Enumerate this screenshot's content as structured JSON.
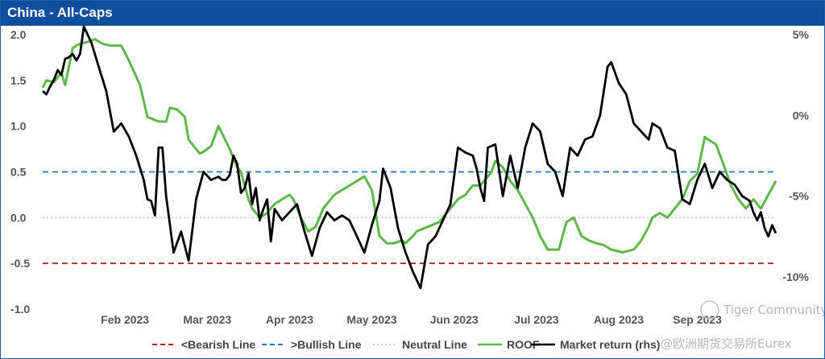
{
  "chart_data": {
    "type": "line",
    "title": "China - All-Caps",
    "x_tick_labels": [
      "Feb 2023",
      "Mar 2023",
      "Apr 2023",
      "May 2023",
      "Jun 2023",
      "Jul 2023",
      "Aug 2023",
      "Sep 2023"
    ],
    "y_left_ticks": [
      "2.0",
      "1.5",
      "1.0",
      "0.5",
      "0.0",
      "-0.5",
      "-1.0"
    ],
    "y_right_ticks": [
      "5%",
      "0%",
      "-5%",
      "-10%"
    ],
    "ylim_left": [
      -1.0,
      2.0
    ],
    "ylim_right_percent": [
      -12.0,
      5.0
    ],
    "reference_lines": [
      {
        "name": "<Bearish Line",
        "value": -0.5,
        "color": "#b22222",
        "style": "dashed"
      },
      {
        "name": ">Bullish Line",
        "value": 0.5,
        "color": "#1f77d4",
        "style": "dashed"
      },
      {
        "name": "Neutral Line",
        "value": 0.0,
        "color": "#bdbdbd",
        "style": "dotted"
      }
    ],
    "series": [
      {
        "name": "ROOF",
        "axis": "left",
        "color": "#5cb848",
        "x": [
          0,
          1,
          3,
          5,
          6,
          7,
          8,
          9,
          10,
          12,
          14,
          16,
          18,
          21,
          23,
          26,
          28,
          31,
          33,
          34,
          36,
          38,
          39,
          41,
          42,
          43,
          45,
          47,
          50,
          52,
          53,
          54,
          55,
          56,
          58,
          60,
          62,
          64,
          66,
          67,
          68,
          69,
          71,
          73,
          75,
          78,
          80,
          82,
          84,
          86,
          88,
          90,
          92,
          94,
          96,
          97,
          99,
          100,
          103,
          106,
          108,
          110,
          111,
          113,
          115,
          117,
          119,
          120,
          121,
          123,
          125,
          127,
          129,
          131,
          133,
          135,
          138,
          140,
          142,
          144,
          146,
          148,
          150,
          152,
          155,
          158,
          160,
          162,
          163,
          165,
          167,
          169,
          171,
          173,
          175,
          177,
          178,
          180,
          182,
          184,
          186,
          188,
          190,
          192,
          194,
          196
        ],
        "values": [
          1.42,
          1.5,
          1.48,
          1.58,
          1.45,
          1.65,
          1.85,
          1.88,
          1.9,
          1.92,
          1.95,
          1.9,
          1.88,
          1.88,
          1.72,
          1.45,
          1.1,
          1.05,
          1.05,
          1.2,
          1.18,
          1.1,
          0.85,
          0.75,
          0.7,
          0.72,
          0.78,
          1.0,
          0.75,
          0.55,
          0.5,
          0.35,
          0.2,
          0.1,
          0.0,
          0.05,
          0.15,
          0.2,
          0.25,
          0.2,
          0.1,
          0.0,
          -0.15,
          -0.1,
          0.1,
          0.25,
          0.3,
          0.35,
          0.4,
          0.45,
          0.3,
          -0.2,
          -0.28,
          -0.28,
          -0.25,
          -0.28,
          -0.2,
          -0.15,
          -0.1,
          -0.05,
          0.05,
          0.15,
          0.2,
          0.25,
          0.35,
          0.35,
          0.45,
          0.5,
          0.62,
          0.55,
          0.4,
          0.3,
          0.15,
          0.0,
          -0.2,
          -0.35,
          -0.35,
          -0.05,
          0.0,
          -0.2,
          -0.25,
          -0.28,
          -0.3,
          -0.35,
          -0.38,
          -0.35,
          -0.25,
          -0.1,
          0.0,
          0.05,
          0.0,
          0.1,
          0.2,
          0.4,
          0.48,
          0.88,
          0.85,
          0.8,
          0.58,
          0.35,
          0.2,
          0.1,
          0.2,
          0.1,
          0.25,
          0.4
        ]
      },
      {
        "name": "Market return (rhs)",
        "axis": "right",
        "unit": "%",
        "color": "#000000",
        "x": [
          0,
          1,
          2,
          3,
          4,
          5,
          6,
          7,
          8,
          9,
          10,
          11,
          13,
          15,
          17,
          19,
          21,
          23,
          25,
          27,
          28,
          29,
          30,
          31,
          32,
          33,
          35,
          37,
          39,
          41,
          43,
          45,
          47,
          48,
          49,
          50,
          51,
          52,
          53,
          54,
          55,
          56,
          57,
          58,
          59,
          60,
          61,
          62,
          64,
          66,
          68,
          70,
          72,
          74,
          76,
          78,
          80,
          82,
          84,
          86,
          88,
          90,
          91,
          93,
          95,
          97,
          99,
          100,
          101,
          103,
          105,
          107,
          109,
          111,
          113,
          115,
          116,
          117,
          118,
          119,
          121,
          123,
          125,
          127,
          129,
          131,
          133,
          135,
          137,
          139,
          141,
          143,
          145,
          147,
          149,
          151,
          152,
          154,
          156,
          158,
          160,
          162,
          163,
          165,
          167,
          169,
          171,
          173,
          175,
          177,
          179,
          181,
          183,
          185,
          187,
          189,
          190,
          191,
          192,
          193,
          194,
          195,
          196
        ],
        "values": [
          1.5,
          1.3,
          1.8,
          2.2,
          2.8,
          2.5,
          3.5,
          3.6,
          3.8,
          3.4,
          3.8,
          5.5,
          4.5,
          3.0,
          1.5,
          -1.0,
          -0.5,
          -1.3,
          -2.5,
          -4.0,
          -5.2,
          -5.3,
          -6.2,
          -2.0,
          -2.0,
          -5.0,
          -8.5,
          -7.2,
          -9.0,
          -5.2,
          -3.5,
          -4.0,
          -3.8,
          -4.0,
          -4.0,
          -3.7,
          -2.5,
          -3.0,
          -4.8,
          -4.5,
          -3.6,
          -5.5,
          -4.5,
          -6.5,
          -5.8,
          -5.2,
          -7.8,
          -5.8,
          -6.5,
          -6.0,
          -5.5,
          -7.2,
          -8.7,
          -7.0,
          -6.0,
          -6.5,
          -6.2,
          -6.5,
          -7.5,
          -8.5,
          -6.8,
          -5.3,
          -3.3,
          -4.5,
          -7.0,
          -8.5,
          -9.7,
          -10.2,
          -10.7,
          -8.0,
          -7.5,
          -6.5,
          -5.5,
          -2.0,
          -2.3,
          -2.5,
          -3.3,
          -4.5,
          -5.3,
          -2.0,
          -1.8,
          -5.0,
          -2.5,
          -4.5,
          -2.0,
          -0.5,
          -1.0,
          -3.0,
          -3.5,
          -5.0,
          -2.0,
          -2.5,
          -1.5,
          -1.3,
          0.0,
          3.0,
          3.3,
          2.0,
          1.3,
          -0.5,
          -1.0,
          -1.5,
          -0.5,
          -0.8,
          -2.0,
          -2.2,
          -5.2,
          -5.5,
          -4.0,
          -3.0,
          -4.5,
          -3.5,
          -4.0,
          -4.3,
          -5.0,
          -5.3,
          -6.0,
          -6.5,
          -6.0,
          -7.0,
          -7.5,
          -6.8,
          -7.3
        ]
      }
    ],
    "x_tick_positions": [
      22,
      44,
      66,
      88,
      110,
      132,
      154,
      175
    ]
  },
  "legend": [
    {
      "label": "<Bearish Line",
      "icon": "dashed-line",
      "color": "#b22222"
    },
    {
      "label": ">Bullish Line",
      "icon": "dashed-line",
      "color": "#1f77d4"
    },
    {
      "label": "Neutral Line",
      "icon": "dotted-line",
      "color": "#bdbdbd"
    },
    {
      "label": "ROOF",
      "icon": "solid-line",
      "color": "#5cb848"
    },
    {
      "label": "Market return (rhs)",
      "icon": "solid-line",
      "color": "#000000"
    }
  ],
  "watermark": {
    "line1": "Tiger Community",
    "line2": "@欧洲期货交易所Eurex"
  }
}
